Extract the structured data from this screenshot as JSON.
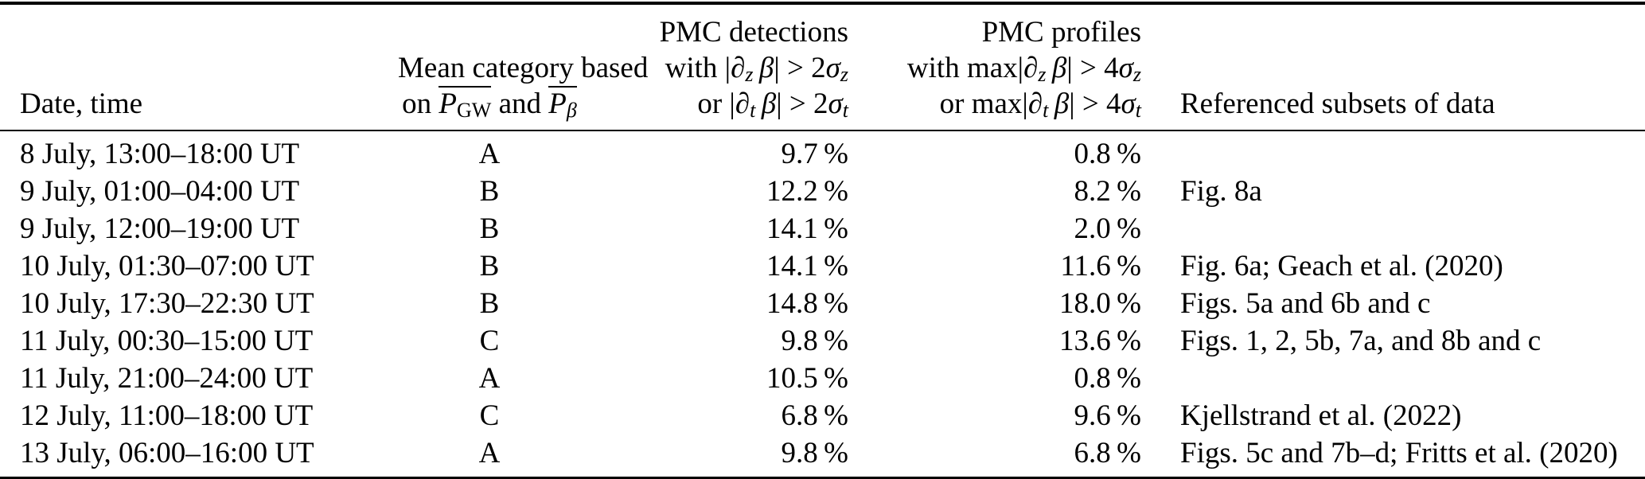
{
  "table": {
    "headers": {
      "date_time": "Date, time",
      "category_line1": "Mean category based",
      "category_line2": [
        {
          "t": "on "
        },
        {
          "g": [
            {
              "t": "P",
              "i": 1
            },
            {
              "t": "GW",
              "sub": 1
            }
          ],
          "ov": 1
        },
        {
          "t": " and "
        },
        {
          "g": [
            {
              "t": "P",
              "i": 1
            },
            {
              "t": "β",
              "sub": 1,
              "i": 1
            }
          ],
          "ov": 1
        }
      ],
      "detections_line1": "PMC detections",
      "detections_line2": [
        {
          "t": "with |"
        },
        {
          "t": "∂",
          "i": 1
        },
        {
          "t": "z",
          "sub": 1,
          "i": 1
        },
        {
          "t": " "
        },
        {
          "t": "β",
          "i": 1
        },
        {
          "t": "| > 2"
        },
        {
          "t": "σ",
          "i": 1
        },
        {
          "t": "z",
          "sub": 1,
          "i": 1
        }
      ],
      "detections_line3": [
        {
          "t": "or |"
        },
        {
          "t": "∂",
          "i": 1
        },
        {
          "t": "t",
          "sub": 1,
          "i": 1
        },
        {
          "t": " "
        },
        {
          "t": "β",
          "i": 1
        },
        {
          "t": "| > 2"
        },
        {
          "t": "σ",
          "i": 1
        },
        {
          "t": "t",
          "sub": 1,
          "i": 1
        }
      ],
      "profiles_line1": "PMC profiles",
      "profiles_line2": [
        {
          "t": "with max|"
        },
        {
          "t": "∂",
          "i": 1
        },
        {
          "t": "z",
          "sub": 1,
          "i": 1
        },
        {
          "t": " "
        },
        {
          "t": "β",
          "i": 1
        },
        {
          "t": "| > 4"
        },
        {
          "t": "σ",
          "i": 1
        },
        {
          "t": "z",
          "sub": 1,
          "i": 1
        }
      ],
      "profiles_line3": [
        {
          "t": "or max|"
        },
        {
          "t": "∂",
          "i": 1
        },
        {
          "t": "t",
          "sub": 1,
          "i": 1
        },
        {
          "t": " "
        },
        {
          "t": "β",
          "i": 1
        },
        {
          "t": "| > 4"
        },
        {
          "t": "σ",
          "i": 1
        },
        {
          "t": "t",
          "sub": 1,
          "i": 1
        }
      ],
      "referenced": "Referenced subsets of data"
    },
    "rows": [
      {
        "date_time": "8 July, 13:00–18:00 UT",
        "category": "A",
        "detections": "9.7 %",
        "profiles": "0.8 %",
        "referenced": ""
      },
      {
        "date_time": "9 July, 01:00–04:00 UT",
        "category": "B",
        "detections": "12.2 %",
        "profiles": "8.2 %",
        "referenced": "Fig. 8a"
      },
      {
        "date_time": "9 July, 12:00–19:00 UT",
        "category": "B",
        "detections": "14.1 %",
        "profiles": "2.0 %",
        "referenced": ""
      },
      {
        "date_time": "10 July, 01:30–07:00 UT",
        "category": "B",
        "detections": "14.1 %",
        "profiles": "11.6 %",
        "referenced": "Fig. 6a; Geach et al. (2020)"
      },
      {
        "date_time": "10 July, 17:30–22:30 UT",
        "category": "B",
        "detections": "14.8 %",
        "profiles": "18.0 %",
        "referenced": "Figs. 5a and 6b and c"
      },
      {
        "date_time": "11 July, 00:30–15:00 UT",
        "category": "C",
        "detections": "9.8 %",
        "profiles": "13.6 %",
        "referenced": "Figs. 1, 2, 5b, 7a, and 8b and c"
      },
      {
        "date_time": "11 July, 21:00–24:00 UT",
        "category": "A",
        "detections": "10.5 %",
        "profiles": "0.8 %",
        "referenced": ""
      },
      {
        "date_time": "12 July, 11:00–18:00 UT",
        "category": "C",
        "detections": "6.8 %",
        "profiles": "9.6 %",
        "referenced": "Kjellstrand et al. (2022)"
      },
      {
        "date_time": "13 July, 06:00–16:00 UT",
        "category": "A",
        "detections": "9.8 %",
        "profiles": "6.8 %",
        "referenced": "Figs. 5c and 7b–d; Fritts et al. (2020)"
      }
    ]
  }
}
